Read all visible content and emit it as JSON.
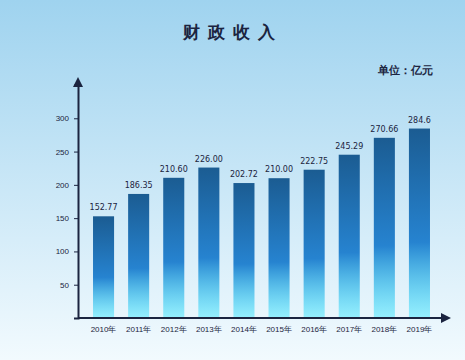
{
  "chart_data": {
    "type": "bar",
    "title": "财政收入",
    "subtitle": "单位：亿元",
    "categories": [
      "2010年",
      "2011年",
      "2012年",
      "2013年",
      "2014年",
      "2015年",
      "2016年",
      "2017年",
      "2018年",
      "2019年"
    ],
    "values": [
      152.77,
      186.35,
      210.6,
      226.0,
      202.72,
      210.0,
      222.75,
      245.29,
      270.66,
      284.6
    ],
    "value_labels": [
      "152.77",
      "186.35",
      "210.60",
      "226.00",
      "202.72",
      "210.00",
      "222.75",
      "245.29",
      "270.66",
      "284.6"
    ],
    "color": "#1f6aa8",
    "ylim": [
      0,
      350
    ],
    "yticks": [
      50,
      100,
      150,
      200,
      250,
      300
    ],
    "grid": false,
    "data_labels": true
  }
}
